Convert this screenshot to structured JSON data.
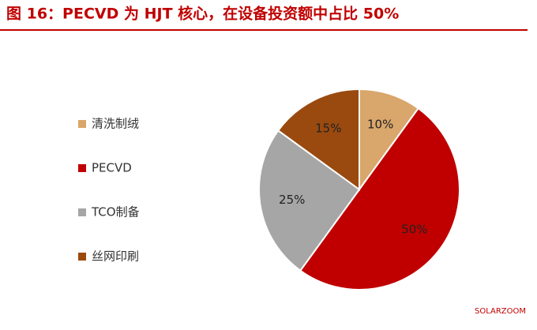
{
  "chart_data": {
    "type": "pie",
    "title": "图 16：PECVD 为 HJT 核心，在设备投资额中占比 50%",
    "categories": [
      "清洗制绒",
      "PECVD",
      "TCO制备",
      "丝网印刷"
    ],
    "values": [
      10,
      50,
      25,
      15
    ],
    "value_labels": [
      "10%",
      "50%",
      "25%",
      "15%"
    ],
    "colors": [
      "#d9a66b",
      "#c00000",
      "#a6a6a6",
      "#9a4a0f"
    ],
    "legend": "left",
    "watermark": "SOLARZOOM"
  }
}
